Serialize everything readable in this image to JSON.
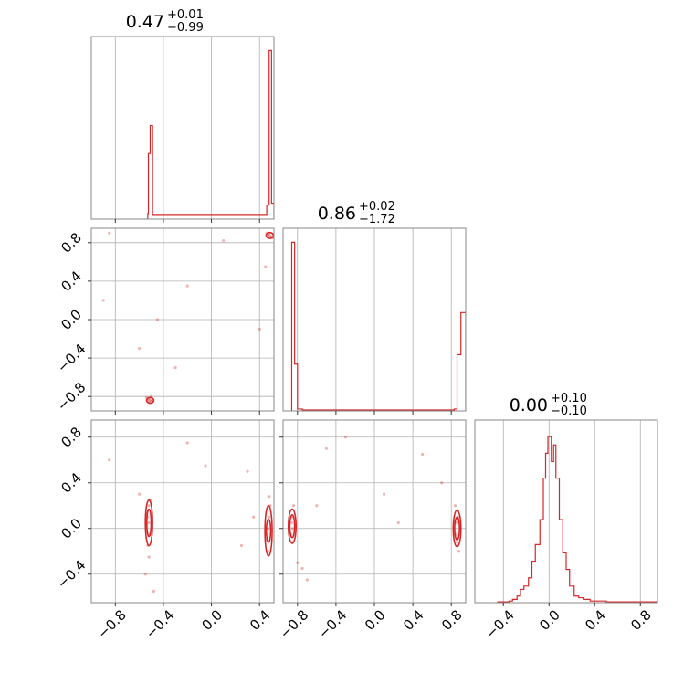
{
  "chart_data": {
    "type": "corner",
    "color": "#d62728",
    "parameters": [
      {
        "title": {
          "value": "0.47",
          "plus": "+0.01",
          "minus": "−0.99"
        },
        "range": [
          -1.0,
          0.52
        ],
        "ticks": [
          -0.8,
          -0.4,
          0.0,
          0.4
        ],
        "tick_labels": [
          "−0.8",
          "−0.4",
          "0.0",
          "0.4"
        ],
        "histogram": [
          [
            -0.53,
            0.06
          ],
          [
            -0.525,
            0.7
          ],
          [
            -0.51,
            1.0
          ],
          [
            -0.49,
            0.05
          ],
          [
            0.46,
            0.15
          ],
          [
            0.48,
            1.8
          ],
          [
            0.5,
            0.17
          ]
        ],
        "hist_ymax": 1.95
      },
      {
        "title": {
          "value": "0.86",
          "plus": "+0.02",
          "minus": "−1.72"
        },
        "range": [
          -0.95,
          0.95
        ],
        "ticks": [
          -0.8,
          -0.4,
          0.0,
          0.4,
          0.8
        ],
        "tick_labels": [
          "−0.8",
          "−0.4",
          "0.0",
          "0.4",
          "0.8"
        ],
        "histogram": [
          [
            -0.87,
            0.0
          ],
          [
            -0.86,
            1.8
          ],
          [
            -0.83,
            0.5
          ],
          [
            -0.8,
            0.02
          ],
          [
            -0.75,
            0.01
          ],
          [
            0.83,
            0.02
          ],
          [
            0.86,
            0.6
          ],
          [
            0.9,
            1.05
          ]
        ],
        "hist_ymax": 1.95
      },
      {
        "title": {
          "value": "0.00",
          "plus": "+0.10",
          "minus": "−0.10"
        },
        "range": [
          -0.65,
          0.95
        ],
        "ticks": [
          -0.4,
          0.0,
          0.4,
          0.8
        ],
        "tick_labels": [
          "−0.4",
          "0.0",
          "0.4",
          "0.8"
        ],
        "histogram": [
          [
            -0.45,
            0.005
          ],
          [
            -0.35,
            0.01
          ],
          [
            -0.32,
            0.02
          ],
          [
            -0.28,
            0.04
          ],
          [
            -0.25,
            0.08
          ],
          [
            -0.22,
            0.1
          ],
          [
            -0.18,
            0.15
          ],
          [
            -0.15,
            0.25
          ],
          [
            -0.12,
            0.35
          ],
          [
            -0.08,
            0.5
          ],
          [
            -0.05,
            0.75
          ],
          [
            -0.03,
            0.9
          ],
          [
            -0.01,
            1.0
          ],
          [
            0.02,
            0.85
          ],
          [
            0.04,
            0.95
          ],
          [
            0.06,
            0.75
          ],
          [
            0.09,
            0.5
          ],
          [
            0.12,
            0.3
          ],
          [
            0.15,
            0.2
          ],
          [
            0.18,
            0.1
          ],
          [
            0.22,
            0.04
          ],
          [
            0.26,
            0.03
          ],
          [
            0.3,
            0.02
          ],
          [
            0.36,
            0.01
          ],
          [
            0.5,
            0.005
          ],
          [
            0.8,
            0.005
          ],
          [
            0.92,
            0.005
          ]
        ],
        "hist_ymax": 1.1
      }
    ],
    "scatter_panels": [
      {
        "x_param": 0,
        "y_param": 1,
        "points": [
          [
            -0.52,
            -0.82
          ],
          [
            -0.51,
            -0.84
          ],
          [
            -0.53,
            -0.83
          ],
          [
            -0.5,
            -0.85
          ],
          [
            -0.52,
            -0.85
          ],
          [
            -0.49,
            -0.84
          ],
          [
            -0.54,
            -0.81
          ],
          [
            -0.5,
            -0.8
          ],
          [
            0.47,
            0.88
          ],
          [
            0.49,
            0.87
          ],
          [
            0.5,
            0.86
          ],
          [
            0.48,
            0.89
          ],
          [
            0.51,
            0.85
          ],
          [
            0.46,
            0.9
          ],
          [
            -0.9,
            0.2
          ],
          [
            -0.6,
            -0.3
          ],
          [
            -0.3,
            -0.5
          ],
          [
            -0.2,
            0.35
          ],
          [
            0.1,
            0.82
          ],
          [
            0.4,
            -0.1
          ],
          [
            0.45,
            0.55
          ],
          [
            -0.85,
            0.9
          ],
          [
            -0.45,
            0.0
          ]
        ],
        "contours": [
          {
            "cx": -0.51,
            "cy": -0.84,
            "rx": 0.03,
            "ry": 0.03
          },
          {
            "cx": 0.485,
            "cy": 0.875,
            "rx": 0.03,
            "ry": 0.03
          }
        ]
      },
      {
        "x_param": 0,
        "y_param": 2,
        "points": [
          [
            -0.52,
            0.05
          ],
          [
            -0.53,
            0.1
          ],
          [
            -0.51,
            -0.05
          ],
          [
            -0.52,
            0.2
          ],
          [
            -0.53,
            -0.15
          ],
          [
            -0.51,
            0.25
          ],
          [
            -0.52,
            -0.25
          ],
          [
            0.47,
            0.0
          ],
          [
            0.48,
            0.1
          ],
          [
            0.46,
            -0.1
          ],
          [
            0.49,
            0.2
          ],
          [
            0.47,
            -0.2
          ],
          [
            0.48,
            0.28
          ],
          [
            -0.55,
            -0.4
          ],
          [
            -0.48,
            -0.55
          ],
          [
            -0.6,
            0.3
          ],
          [
            -0.2,
            0.75
          ],
          [
            -0.05,
            0.55
          ],
          [
            0.25,
            -0.15
          ],
          [
            0.35,
            0.1
          ],
          [
            -0.85,
            0.6
          ],
          [
            0.3,
            0.5
          ]
        ],
        "contours": [
          {
            "cx": -0.52,
            "cy": 0.05,
            "rx": 0.018,
            "ry": 0.12
          },
          {
            "cx": -0.52,
            "cy": 0.05,
            "rx": 0.03,
            "ry": 0.2
          },
          {
            "cx": 0.475,
            "cy": -0.02,
            "rx": 0.018,
            "ry": 0.1
          },
          {
            "cx": 0.475,
            "cy": -0.02,
            "rx": 0.03,
            "ry": 0.22
          }
        ]
      },
      {
        "x_param": 1,
        "y_param": 2,
        "points": [
          [
            -0.86,
            0.05
          ],
          [
            -0.85,
            0.0
          ],
          [
            -0.87,
            -0.05
          ],
          [
            -0.86,
            0.1
          ],
          [
            -0.85,
            -0.12
          ],
          [
            -0.84,
            0.2
          ],
          [
            -0.8,
            -0.3
          ],
          [
            -0.75,
            -0.35
          ],
          [
            -0.7,
            -0.45
          ],
          [
            0.86,
            0.05
          ],
          [
            0.85,
            -0.05
          ],
          [
            0.87,
            0.1
          ],
          [
            0.86,
            -0.12
          ],
          [
            0.84,
            0.2
          ],
          [
            0.88,
            -0.2
          ],
          [
            -0.5,
            0.7
          ],
          [
            -0.3,
            0.8
          ],
          [
            0.1,
            0.3
          ],
          [
            0.25,
            0.05
          ],
          [
            0.5,
            0.65
          ],
          [
            0.7,
            0.4
          ],
          [
            -0.6,
            0.2
          ]
        ],
        "contours": [
          {
            "cx": -0.855,
            "cy": 0.02,
            "rx": 0.025,
            "ry": 0.1
          },
          {
            "cx": -0.855,
            "cy": 0.02,
            "rx": 0.04,
            "ry": 0.15
          },
          {
            "cx": 0.86,
            "cy": 0.0,
            "rx": 0.025,
            "ry": 0.1
          },
          {
            "cx": 0.86,
            "cy": 0.0,
            "rx": 0.04,
            "ry": 0.16
          }
        ]
      }
    ]
  }
}
